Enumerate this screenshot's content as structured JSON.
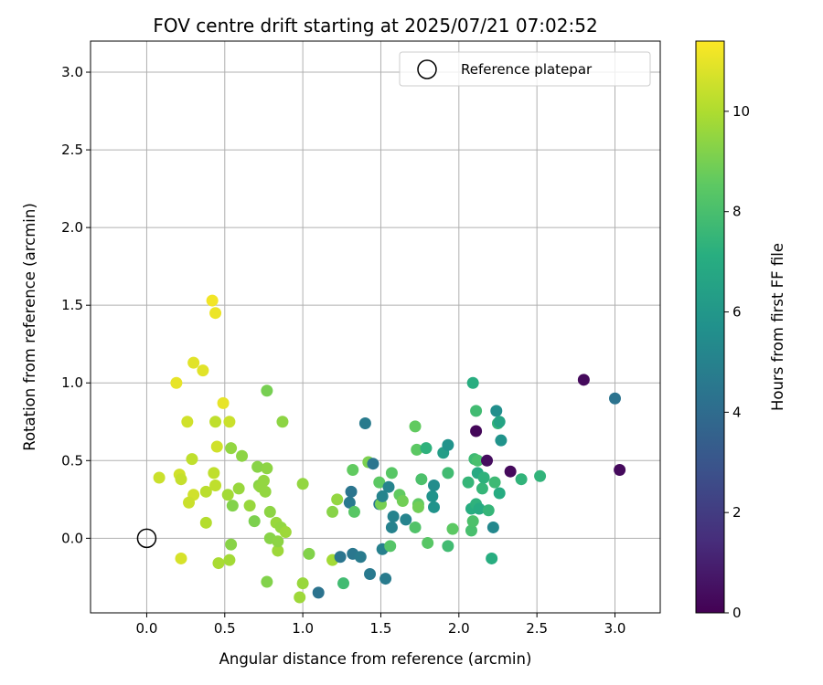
{
  "chart_data": {
    "type": "scatter",
    "title": "FOV centre drift starting at 2025/07/21 07:02:52",
    "xlabel": "Angular distance from reference (arcmin)",
    "ylabel": "Rotation from reference (arcmin)",
    "xlim": [
      -0.36,
      3.29
    ],
    "ylim": [
      -0.48,
      3.2
    ],
    "xticks": [
      "0.0",
      "0.5",
      "1.0",
      "1.5",
      "2.0",
      "2.5",
      "3.0"
    ],
    "yticks": [
      "0.0",
      "0.5",
      "1.0",
      "1.5",
      "2.0",
      "2.5",
      "3.0"
    ],
    "grid": true,
    "legend": {
      "location": "top-right",
      "entries": [
        "Reference platepar"
      ]
    },
    "reference_point": {
      "x": 0.0,
      "y": 0.0,
      "marker": "hollow circle",
      "color": "#000000"
    },
    "colorbar": {
      "label": "Hours from first FF file",
      "colormap": "viridis",
      "range": [
        0,
        11.4
      ],
      "ticks": [
        "0",
        "2",
        "4",
        "6",
        "8",
        "10"
      ]
    },
    "points": [
      {
        "x": 0.42,
        "y": 1.53,
        "t": 11.2
      },
      {
        "x": 0.44,
        "y": 1.45,
        "t": 11.1
      },
      {
        "x": 0.19,
        "y": 1.0,
        "t": 11.0
      },
      {
        "x": 0.3,
        "y": 1.13,
        "t": 10.9
      },
      {
        "x": 0.36,
        "y": 1.08,
        "t": 10.9
      },
      {
        "x": 0.49,
        "y": 0.87,
        "t": 11.0
      },
      {
        "x": 0.26,
        "y": 0.75,
        "t": 10.6
      },
      {
        "x": 0.44,
        "y": 0.75,
        "t": 10.3
      },
      {
        "x": 0.53,
        "y": 0.75,
        "t": 10.5
      },
      {
        "x": 0.45,
        "y": 0.59,
        "t": 10.6
      },
      {
        "x": 0.29,
        "y": 0.51,
        "t": 10.3
      },
      {
        "x": 0.08,
        "y": 0.39,
        "t": 10.5
      },
      {
        "x": 0.21,
        "y": 0.41,
        "t": 10.6
      },
      {
        "x": 0.22,
        "y": 0.38,
        "t": 10.4
      },
      {
        "x": 0.3,
        "y": 0.28,
        "t": 10.6
      },
      {
        "x": 0.27,
        "y": 0.23,
        "t": 10.5
      },
      {
        "x": 0.38,
        "y": 0.3,
        "t": 10.2
      },
      {
        "x": 0.43,
        "y": 0.42,
        "t": 10.3
      },
      {
        "x": 0.44,
        "y": 0.34,
        "t": 10.3
      },
      {
        "x": 0.52,
        "y": 0.28,
        "t": 9.8
      },
      {
        "x": 0.38,
        "y": 0.1,
        "t": 10.1
      },
      {
        "x": 0.22,
        "y": -0.13,
        "t": 10.7
      },
      {
        "x": 0.46,
        "y": -0.16,
        "t": 9.9
      },
      {
        "x": 0.53,
        "y": -0.14,
        "t": 9.8
      },
      {
        "x": 0.54,
        "y": -0.04,
        "t": 9.3
      },
      {
        "x": 0.54,
        "y": 0.58,
        "t": 9.5
      },
      {
        "x": 0.61,
        "y": 0.53,
        "t": 9.4
      },
      {
        "x": 0.55,
        "y": 0.21,
        "t": 9.2
      },
      {
        "x": 0.59,
        "y": 0.32,
        "t": 9.6
      },
      {
        "x": 0.66,
        "y": 0.21,
        "t": 9.6
      },
      {
        "x": 0.69,
        "y": 0.11,
        "t": 9.1
      },
      {
        "x": 0.71,
        "y": 0.46,
        "t": 9.3
      },
      {
        "x": 0.72,
        "y": 0.34,
        "t": 9.3
      },
      {
        "x": 0.73,
        "y": 0.33,
        "t": 9.5
      },
      {
        "x": 0.75,
        "y": 0.37,
        "t": 9.5
      },
      {
        "x": 0.76,
        "y": 0.3,
        "t": 9.5
      },
      {
        "x": 0.77,
        "y": 0.45,
        "t": 9.4
      },
      {
        "x": 0.77,
        "y": 0.95,
        "t": 9.0
      },
      {
        "x": 0.79,
        "y": 0.17,
        "t": 9.4
      },
      {
        "x": 0.79,
        "y": 0.0,
        "t": 9.3
      },
      {
        "x": 0.83,
        "y": 0.1,
        "t": 9.6
      },
      {
        "x": 0.84,
        "y": -0.08,
        "t": 9.7
      },
      {
        "x": 0.84,
        "y": -0.02,
        "t": 9.4
      },
      {
        "x": 0.86,
        "y": 0.07,
        "t": 9.5
      },
      {
        "x": 0.89,
        "y": 0.04,
        "t": 9.7
      },
      {
        "x": 0.77,
        "y": -0.28,
        "t": 9.2
      },
      {
        "x": 0.87,
        "y": 0.75,
        "t": 9.4
      },
      {
        "x": 0.98,
        "y": -0.38,
        "t": 9.7
      },
      {
        "x": 1.0,
        "y": -0.29,
        "t": 9.6
      },
      {
        "x": 1.0,
        "y": 0.35,
        "t": 9.5
      },
      {
        "x": 1.04,
        "y": -0.1,
        "t": 9.2
      },
      {
        "x": 1.1,
        "y": -0.35,
        "t": 4.3
      },
      {
        "x": 1.19,
        "y": -0.14,
        "t": 9.8
      },
      {
        "x": 1.19,
        "y": 0.17,
        "t": 9.3
      },
      {
        "x": 1.22,
        "y": 0.25,
        "t": 9.5
      },
      {
        "x": 1.24,
        "y": -0.12,
        "t": 4.4
      },
      {
        "x": 1.26,
        "y": -0.29,
        "t": 7.8
      },
      {
        "x": 1.3,
        "y": 0.23,
        "t": 4.6
      },
      {
        "x": 1.31,
        "y": 0.3,
        "t": 4.4
      },
      {
        "x": 1.32,
        "y": 0.44,
        "t": 8.6
      },
      {
        "x": 1.32,
        "y": -0.1,
        "t": 4.5
      },
      {
        "x": 1.33,
        "y": 0.17,
        "t": 8.4
      },
      {
        "x": 1.37,
        "y": -0.12,
        "t": 4.7
      },
      {
        "x": 1.4,
        "y": 0.74,
        "t": 4.7
      },
      {
        "x": 1.42,
        "y": 0.49,
        "t": 9.1
      },
      {
        "x": 1.43,
        "y": -0.23,
        "t": 4.6
      },
      {
        "x": 1.45,
        "y": 0.48,
        "t": 4.4
      },
      {
        "x": 1.49,
        "y": 0.36,
        "t": 8.5
      },
      {
        "x": 1.49,
        "y": 0.22,
        "t": 4.6
      },
      {
        "x": 1.5,
        "y": 0.22,
        "t": 9.0
      },
      {
        "x": 1.51,
        "y": -0.07,
        "t": 4.9
      },
      {
        "x": 1.51,
        "y": 0.27,
        "t": 5.1
      },
      {
        "x": 1.53,
        "y": -0.26,
        "t": 4.7
      },
      {
        "x": 1.55,
        "y": 0.33,
        "t": 5.1
      },
      {
        "x": 1.56,
        "y": -0.05,
        "t": 8.3
      },
      {
        "x": 1.57,
        "y": 0.42,
        "t": 8.4
      },
      {
        "x": 1.57,
        "y": 0.07,
        "t": 5.0
      },
      {
        "x": 1.58,
        "y": 0.14,
        "t": 5.0
      },
      {
        "x": 1.62,
        "y": 0.28,
        "t": 8.6
      },
      {
        "x": 1.64,
        "y": 0.24,
        "t": 8.9
      },
      {
        "x": 1.66,
        "y": 0.12,
        "t": 5.1
      },
      {
        "x": 1.72,
        "y": 0.72,
        "t": 8.6
      },
      {
        "x": 1.72,
        "y": 0.07,
        "t": 8.2
      },
      {
        "x": 1.73,
        "y": 0.57,
        "t": 8.5
      },
      {
        "x": 1.74,
        "y": 0.22,
        "t": 8.6
      },
      {
        "x": 1.74,
        "y": 0.2,
        "t": 8.9
      },
      {
        "x": 1.76,
        "y": 0.38,
        "t": 8.1
      },
      {
        "x": 1.79,
        "y": 0.58,
        "t": 7.3
      },
      {
        "x": 1.8,
        "y": -0.03,
        "t": 8.4
      },
      {
        "x": 1.83,
        "y": 0.27,
        "t": 5.8
      },
      {
        "x": 1.84,
        "y": 0.2,
        "t": 5.8
      },
      {
        "x": 1.84,
        "y": 0.34,
        "t": 5.5
      },
      {
        "x": 1.9,
        "y": 0.55,
        "t": 6.3
      },
      {
        "x": 1.93,
        "y": 0.6,
        "t": 5.8
      },
      {
        "x": 1.93,
        "y": 0.42,
        "t": 7.8
      },
      {
        "x": 1.93,
        "y": -0.05,
        "t": 7.8
      },
      {
        "x": 1.96,
        "y": 0.06,
        "t": 8.5
      },
      {
        "x": 2.06,
        "y": 0.36,
        "t": 7.5
      },
      {
        "x": 2.08,
        "y": 0.19,
        "t": 7.1
      },
      {
        "x": 2.08,
        "y": 0.05,
        "t": 8.0
      },
      {
        "x": 2.09,
        "y": 0.11,
        "t": 8.1
      },
      {
        "x": 2.09,
        "y": 1.0,
        "t": 7.1
      },
      {
        "x": 2.1,
        "y": 0.51,
        "t": 7.7
      },
      {
        "x": 2.11,
        "y": 0.22,
        "t": 7.3
      },
      {
        "x": 2.11,
        "y": 0.82,
        "t": 7.8
      },
      {
        "x": 2.11,
        "y": 0.69,
        "t": 0.2
      },
      {
        "x": 2.12,
        "y": 0.5,
        "t": 8.0
      },
      {
        "x": 2.12,
        "y": 0.42,
        "t": 6.9
      },
      {
        "x": 2.13,
        "y": 0.19,
        "t": 7.0
      },
      {
        "x": 2.15,
        "y": 0.32,
        "t": 7.5
      },
      {
        "x": 2.16,
        "y": 0.39,
        "t": 7.3
      },
      {
        "x": 2.18,
        "y": 0.5,
        "t": 0.4
      },
      {
        "x": 2.19,
        "y": 0.18,
        "t": 7.5
      },
      {
        "x": 2.21,
        "y": -0.13,
        "t": 7.1
      },
      {
        "x": 2.22,
        "y": 0.07,
        "t": 5.3
      },
      {
        "x": 2.23,
        "y": 0.36,
        "t": 7.7
      },
      {
        "x": 2.24,
        "y": 0.82,
        "t": 5.6
      },
      {
        "x": 2.25,
        "y": 0.74,
        "t": 7.4
      },
      {
        "x": 2.26,
        "y": 0.75,
        "t": 6.6
      },
      {
        "x": 2.26,
        "y": 0.29,
        "t": 7.0
      },
      {
        "x": 2.27,
        "y": 0.63,
        "t": 5.8
      },
      {
        "x": 2.33,
        "y": 0.43,
        "t": 0.3
      },
      {
        "x": 2.4,
        "y": 0.38,
        "t": 7.4
      },
      {
        "x": 2.52,
        "y": 0.4,
        "t": 7.4
      },
      {
        "x": 2.8,
        "y": 1.02,
        "t": 0.3
      },
      {
        "x": 3.0,
        "y": 0.9,
        "t": 4.3
      },
      {
        "x": 3.03,
        "y": 0.44,
        "t": 0.3
      }
    ]
  }
}
